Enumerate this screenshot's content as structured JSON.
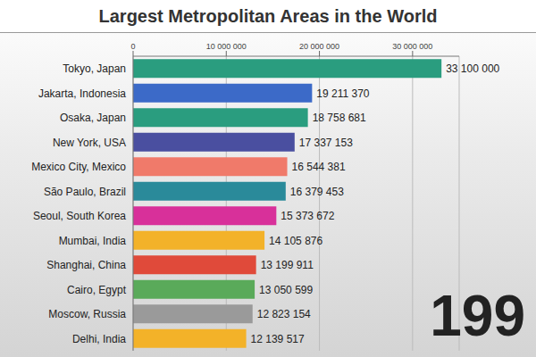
{
  "chart_data": {
    "type": "bar",
    "title": "Largest Metropolitan Areas in the World",
    "orientation": "horizontal",
    "categories": [
      "Tokyo, Japan",
      "Jakarta, Indonesia",
      "Osaka, Japan",
      "New York, USA",
      "Mexico City, Mexico",
      "São Paulo, Brazil",
      "Seoul, South Korea",
      "Mumbai, India",
      "Shanghai, China",
      "Cairo, Egypt",
      "Moscow, Russia",
      "Delhi, India"
    ],
    "values": [
      33100000,
      19211370,
      18758681,
      17337153,
      16544381,
      16379453,
      15373672,
      14105876,
      13199911,
      13050599,
      12823154,
      12139517
    ],
    "value_labels": [
      "33 100 000",
      "19 211 370",
      "18 758 681",
      "17 337 153",
      "16 544 381",
      "16 379 453",
      "15 373 672",
      "14 105 876",
      "13 199 911",
      "13 050 599",
      "12 823 154",
      "12 139 517"
    ],
    "colors": [
      "#2a9d7f",
      "#3c6ac8",
      "#2a9d7f",
      "#4a4fa0",
      "#f07a6a",
      "#2a8a9a",
      "#d8309a",
      "#f3b229",
      "#e04a3a",
      "#5aaa5a",
      "#9a9a9a",
      "#f3b229"
    ],
    "xlim": [
      0,
      35000000
    ],
    "xticks": [
      0,
      {
        "value": 10000000,
        "label": "10 000 000"
      },
      {
        "value": 20000000,
        "label": "20 000 000"
      },
      {
        "value": 30000000,
        "label": "30 000 000"
      }
    ],
    "grid": true,
    "data_labels": true,
    "annotation": "199"
  }
}
